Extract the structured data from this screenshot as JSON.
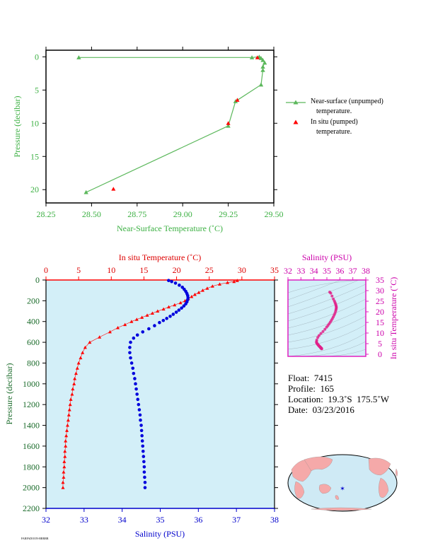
{
  "chart_data": [
    {
      "type": "line",
      "xlabel": "Near-Surface Temperature (˚C)",
      "ylabel": "Pressure (decibar)",
      "xlim": [
        28.25,
        29.5
      ],
      "ylim": [
        22,
        -1
      ],
      "x_ticks": [
        "28.25",
        "28.50",
        "28.75",
        "29.00",
        "29.25",
        "29.50"
      ],
      "y_ticks": [
        "0",
        "5",
        "10",
        "15",
        "20"
      ],
      "legend_position": "right",
      "series": [
        {
          "name": "Near-surface (unpumped) temperature.",
          "color": "#5cb85c",
          "marker": "triangle",
          "points": [
            {
              "x": 28.43,
              "y": 0.1
            },
            {
              "x": 29.38,
              "y": 0.1
            },
            {
              "x": 29.42,
              "y": 0.0
            },
            {
              "x": 29.43,
              "y": 0.2
            },
            {
              "x": 29.44,
              "y": 0.5
            },
            {
              "x": 29.45,
              "y": 0.9
            },
            {
              "x": 29.44,
              "y": 1.5
            },
            {
              "x": 29.44,
              "y": 2.0
            },
            {
              "x": 29.43,
              "y": 4.2
            },
            {
              "x": 29.29,
              "y": 6.7
            },
            {
              "x": 29.25,
              "y": 10.4
            },
            {
              "x": 28.47,
              "y": 20.4
            }
          ]
        },
        {
          "name": "In situ (pumped) temperature.",
          "color": "#ff0000",
          "marker": "triangle",
          "points": [
            {
              "x": 29.41,
              "y": 0.1
            },
            {
              "x": 29.3,
              "y": 6.5
            },
            {
              "x": 29.25,
              "y": 10.0
            },
            {
              "x": 28.62,
              "y": 19.9
            }
          ]
        }
      ]
    },
    {
      "type": "scatter",
      "top_axis_label": "In situ Temperature (˚C)",
      "bottom_axis_label": "Salinity (PSU)",
      "ylabel": "Pressure (decibar)",
      "temperature_xlim": [
        0,
        35
      ],
      "salinity_xlim": [
        32,
        38
      ],
      "ylim": [
        2200,
        0
      ],
      "temperature_ticks": [
        "0",
        "5",
        "10",
        "15",
        "20",
        "25",
        "30",
        "35"
      ],
      "salinity_ticks": [
        "32",
        "33",
        "34",
        "35",
        "36",
        "37",
        "38"
      ],
      "y_ticks": [
        "0",
        "200",
        "400",
        "600",
        "800",
        "1000",
        "1200",
        "1400",
        "1600",
        "1800",
        "2000",
        "2200"
      ],
      "background": "#d3eff8",
      "series": [
        {
          "name": "Temperature",
          "color": "#ff0000",
          "marker": "triangle",
          "pressure": [
            5,
            15,
            25,
            40,
            60,
            80,
            100,
            120,
            140,
            160,
            180,
            200,
            220,
            240,
            260,
            280,
            300,
            320,
            340,
            360,
            380,
            400,
            430,
            460,
            500,
            550,
            600,
            650,
            700,
            750,
            800,
            850,
            900,
            950,
            1000,
            1050,
            1100,
            1150,
            1200,
            1250,
            1300,
            1350,
            1400,
            1450,
            1500,
            1550,
            1600,
            1650,
            1700,
            1750,
            1800,
            1850,
            1900,
            1950,
            2000
          ],
          "temperature": [
            29.3,
            28.8,
            27.8,
            26.6,
            25.5,
            24.7,
            24.0,
            23.4,
            22.8,
            22.3,
            21.8,
            21.3,
            20.6,
            19.7,
            18.8,
            18.0,
            17.1,
            16.3,
            15.5,
            14.7,
            13.9,
            13.1,
            12.1,
            11.0,
            9.8,
            8.2,
            6.7,
            6.0,
            5.6,
            5.3,
            5.0,
            4.8,
            4.6,
            4.4,
            4.3,
            4.1,
            4.0,
            3.8,
            3.7,
            3.6,
            3.5,
            3.4,
            3.3,
            3.2,
            3.1,
            3.0,
            3.0,
            2.9,
            2.9,
            2.8,
            2.8,
            2.7,
            2.7,
            2.6,
            2.6
          ]
        },
        {
          "name": "Salinity",
          "color": "#0000dd",
          "marker": "circle",
          "pressure": [
            5,
            15,
            30,
            50,
            70,
            90,
            110,
            130,
            150,
            170,
            190,
            210,
            230,
            250,
            270,
            290,
            310,
            330,
            350,
            370,
            390,
            410,
            440,
            470,
            500,
            530,
            560,
            600,
            650,
            700,
            750,
            800,
            850,
            900,
            950,
            1000,
            1050,
            1100,
            1150,
            1200,
            1250,
            1300,
            1350,
            1400,
            1450,
            1500,
            1550,
            1600,
            1650,
            1700,
            1750,
            1800,
            1850,
            1900,
            1950,
            2000
          ],
          "salinity": [
            35.22,
            35.3,
            35.4,
            35.5,
            35.58,
            35.63,
            35.67,
            35.7,
            35.72,
            35.73,
            35.72,
            35.7,
            35.67,
            35.62,
            35.56,
            35.49,
            35.42,
            35.34,
            35.26,
            35.17,
            35.08,
            34.98,
            34.85,
            34.7,
            34.54,
            34.4,
            34.3,
            34.22,
            34.2,
            34.2,
            34.22,
            34.25,
            34.28,
            34.3,
            34.33,
            34.35,
            34.37,
            34.39,
            34.41,
            34.43,
            34.45,
            34.47,
            34.48,
            34.5,
            34.51,
            34.52,
            34.53,
            34.54,
            34.55,
            34.56,
            34.57,
            34.58,
            34.58,
            34.59,
            34.6,
            34.6
          ]
        }
      ]
    },
    {
      "type": "scatter",
      "top_axis_label": "Salinity (PSU)",
      "right_axis_label": "In situ Temperature (˚C)",
      "xlim": [
        32,
        38
      ],
      "ylim": [
        -1,
        35
      ],
      "x_ticks": [
        "32",
        "33",
        "34",
        "35",
        "36",
        "37",
        "38"
      ],
      "y_ticks": [
        "0",
        "5",
        "10",
        "15",
        "20",
        "25",
        "30",
        "35"
      ],
      "color": "#e0218a"
    }
  ],
  "legend": {
    "near_surface_line1": "Near-surface (unpumped)",
    "near_surface_line2": "temperature.",
    "in_situ_line1": "In situ (pumped)",
    "in_situ_line2": "temperature."
  },
  "info": {
    "float": "Float:  7415",
    "profile": "Profile:  165",
    "location": "Location:  19.3˚S  175.5˚W",
    "date": "Date:  03/23/2016"
  },
  "map": {
    "ocean_color": "#cfeaf5",
    "land_color": "#f5a9a9",
    "marker_color": "#0000cc",
    "marker_lat": -19.3,
    "marker_lon": -175.5
  },
  "footer_text": "FARFADOON-RRRRR"
}
